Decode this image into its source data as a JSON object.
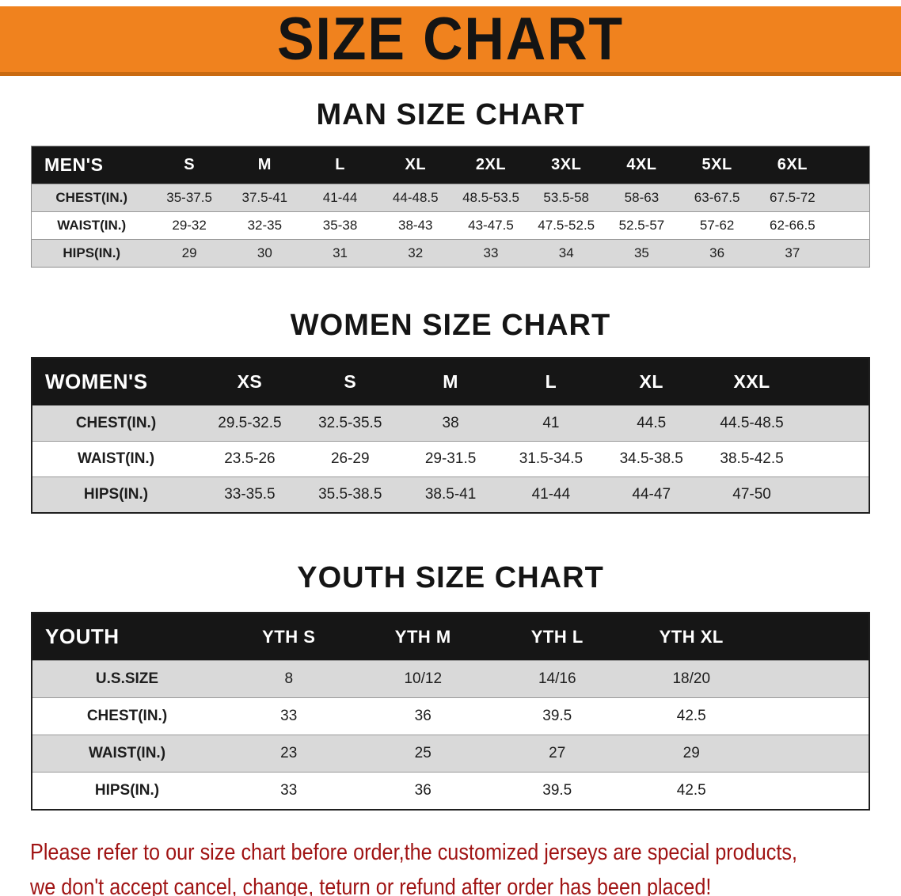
{
  "banner": {
    "title": "SIZE CHART"
  },
  "colors": {
    "banner_bg": "#f0821e",
    "banner_edge": "#c96a10",
    "header_bg": "#161616",
    "header_text": "#ffffff",
    "row_gray": "#d9d9d9",
    "text_dark": "#1a1a1a",
    "disclaimer_red": "#a01414"
  },
  "sections": [
    {
      "id": "men",
      "heading": "MAN SIZE CHART",
      "columns": [
        "MEN'S",
        "S",
        "M",
        "L",
        "XL",
        "2XL",
        "3XL",
        "4XL",
        "5XL",
        "6XL"
      ],
      "rows": [
        {
          "label": "CHEST(IN.)",
          "values": [
            "35-37.5",
            "37.5-41",
            "41-44",
            "44-48.5",
            "48.5-53.5",
            "53.5-58",
            "58-63",
            "63-67.5",
            "67.5-72"
          ]
        },
        {
          "label": "WAIST(IN.)",
          "values": [
            "29-32",
            "32-35",
            "35-38",
            "38-43",
            "43-47.5",
            "47.5-52.5",
            "52.5-57",
            "57-62",
            "62-66.5"
          ]
        },
        {
          "label": "HIPS(IN.)",
          "values": [
            "29",
            "30",
            "31",
            "32",
            "33",
            "34",
            "35",
            "36",
            "37"
          ]
        }
      ]
    },
    {
      "id": "women",
      "heading": "WOMEN SIZE CHART",
      "columns": [
        "WOMEN'S",
        "XS",
        "S",
        "M",
        "L",
        "XL",
        "XXL"
      ],
      "rows": [
        {
          "label": "CHEST(IN.)",
          "values": [
            "29.5-32.5",
            "32.5-35.5",
            "38",
            "41",
            "44.5",
            "44.5-48.5"
          ]
        },
        {
          "label": "WAIST(IN.)",
          "values": [
            "23.5-26",
            "26-29",
            "29-31.5",
            "31.5-34.5",
            "34.5-38.5",
            "38.5-42.5"
          ]
        },
        {
          "label": "HIPS(IN.)",
          "values": [
            "33-35.5",
            "35.5-38.5",
            "38.5-41",
            "41-44",
            "44-47",
            "47-50"
          ]
        }
      ]
    },
    {
      "id": "youth",
      "heading": "YOUTH SIZE CHART",
      "columns": [
        "YOUTH",
        "YTH S",
        "YTH M",
        "YTH L",
        "YTH XL"
      ],
      "rows": [
        {
          "label": "U.S.SIZE",
          "values": [
            "8",
            "10/12",
            "14/16",
            "18/20"
          ]
        },
        {
          "label": "CHEST(IN.)",
          "values": [
            "33",
            "36",
            "39.5",
            "42.5"
          ]
        },
        {
          "label": "WAIST(IN.)",
          "values": [
            "23",
            "25",
            "27",
            "29"
          ]
        },
        {
          "label": "HIPS(IN.)",
          "values": [
            "33",
            "36",
            "39.5",
            "42.5"
          ]
        }
      ]
    }
  ],
  "disclaimer": {
    "lines": [
      "Please refer to our size chart before order,the customized jerseys are special products,",
      "we don't accept cancel, change, teturn or refund after order has been placed!"
    ]
  }
}
